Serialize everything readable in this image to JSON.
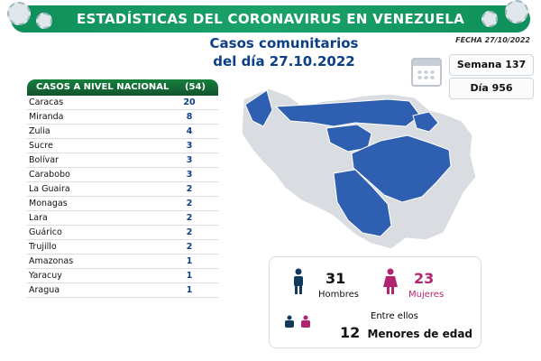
{
  "banner": {
    "title": "ESTADÍSTICAS DEL CORONAVIRUS EN VENEZUELA"
  },
  "date_label": "FECHA 27/10/2022",
  "subtitle": {
    "line1": "Casos comunitarios",
    "line2": "del día 27.10.2022"
  },
  "pills": [
    {
      "label": "Semana 137"
    },
    {
      "label": "Día 956"
    }
  ],
  "table": {
    "title": "CASOS A NIVEL NACIONAL",
    "total": "(54)",
    "rows": [
      {
        "state": "Caracas",
        "cases": "20"
      },
      {
        "state": "Miranda",
        "cases": "8"
      },
      {
        "state": "Zulia",
        "cases": "4"
      },
      {
        "state": "Sucre",
        "cases": "3"
      },
      {
        "state": "Bolívar",
        "cases": "3"
      },
      {
        "state": "Carabobo",
        "cases": "3"
      },
      {
        "state": "La Guaira",
        "cases": "2"
      },
      {
        "state": "Monagas",
        "cases": "2"
      },
      {
        "state": "Lara",
        "cases": "2"
      },
      {
        "state": "Guárico",
        "cases": "2"
      },
      {
        "state": "Trujillo",
        "cases": "2"
      },
      {
        "state": "Amazonas",
        "cases": "1"
      },
      {
        "state": "Yaracuy",
        "cases": "1"
      },
      {
        "state": "Aragua",
        "cases": "1"
      }
    ]
  },
  "stats": {
    "men_count": "31",
    "men_label": "Hombres",
    "women_count": "23",
    "women_label": "Mujeres",
    "among_label": "Entre ellos",
    "minors_count": "12",
    "minors_label": "Menores de edad"
  },
  "colors": {
    "banner_green": "#12935c",
    "title_blue": "#0c3f86",
    "map_blue": "#2f5fb0",
    "map_gray": "#d9dde2",
    "women_pink": "#b0256f",
    "men_navy": "#123a5c"
  }
}
